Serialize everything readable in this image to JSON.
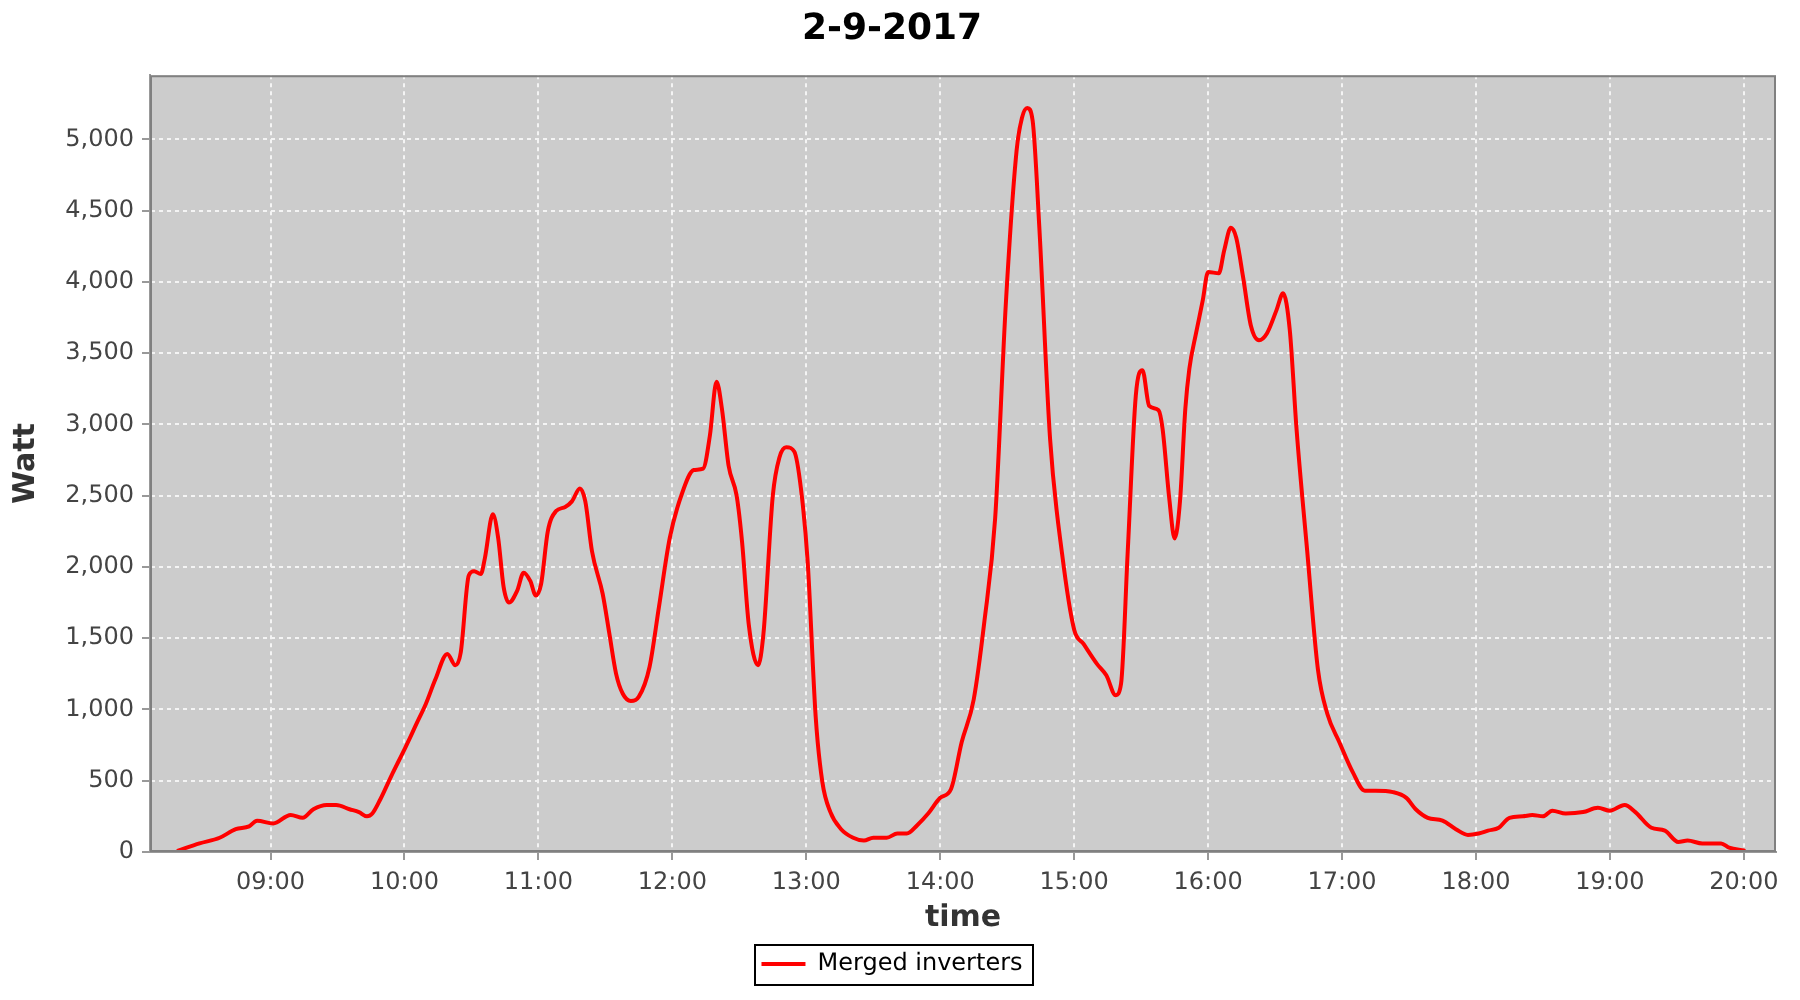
{
  "chart_data": {
    "type": "line",
    "title": "2-9-2017",
    "xlabel": "time",
    "ylabel": "Watt",
    "x": [
      8.31,
      8.47,
      8.62,
      8.74,
      8.84,
      8.9,
      9.02,
      9.15,
      9.24,
      9.32,
      9.42,
      9.49,
      9.59,
      9.66,
      9.72,
      9.76,
      9.82,
      9.91,
      10.0,
      10.09,
      10.16,
      10.23,
      10.32,
      10.38,
      10.42,
      10.48,
      10.52,
      10.57,
      10.6,
      10.66,
      10.7,
      10.74,
      10.78,
      10.84,
      10.89,
      10.94,
      10.98,
      11.02,
      11.07,
      11.13,
      11.2,
      11.25,
      11.31,
      11.35,
      11.4,
      11.48,
      11.53,
      11.58,
      11.63,
      11.69,
      11.75,
      11.83,
      11.9,
      11.98,
      12.07,
      12.16,
      12.23,
      12.28,
      12.33,
      12.37,
      12.42,
      12.48,
      12.52,
      12.57,
      12.64,
      12.68,
      12.75,
      12.8,
      12.85,
      12.91,
      12.96,
      13.01,
      13.07,
      13.12,
      13.18,
      13.26,
      13.35,
      13.43,
      13.5,
      13.6,
      13.68,
      13.75,
      13.83,
      13.91,
      14.0,
      14.08,
      14.16,
      14.25,
      14.33,
      14.41,
      14.49,
      14.57,
      14.61,
      14.65,
      14.69,
      14.74,
      14.82,
      14.91,
      15.0,
      15.07,
      15.17,
      15.24,
      15.31,
      15.35,
      15.4,
      15.46,
      15.51,
      15.56,
      15.63,
      15.66,
      15.71,
      15.75,
      15.79,
      15.83,
      15.86,
      15.91,
      15.96,
      16.0,
      16.08,
      16.12,
      16.17,
      16.21,
      16.26,
      16.32,
      16.38,
      16.44,
      16.51,
      16.56,
      16.61,
      16.66,
      16.74,
      16.82,
      16.89,
      16.98,
      17.08,
      17.17,
      17.25,
      17.38,
      17.48,
      17.55,
      17.64,
      17.75,
      17.85,
      17.94,
      18.02,
      18.09,
      18.17,
      18.25,
      18.35,
      18.42,
      18.5,
      18.57,
      18.67,
      18.8,
      18.91,
      19.0,
      19.11,
      19.19,
      19.31,
      19.41,
      19.51,
      19.58,
      19.69,
      19.83,
      19.89,
      20.0
    ],
    "series": [
      {
        "name": "Merged inverters",
        "color": "#ff0000",
        "values": [
          10,
          60,
          100,
          160,
          180,
          220,
          200,
          260,
          240,
          300,
          330,
          330,
          300,
          280,
          250,
          270,
          370,
          550,
          720,
          900,
          1040,
          1210,
          1390,
          1310,
          1400,
          1940,
          1970,
          1950,
          2060,
          2370,
          2200,
          1860,
          1750,
          1830,
          1960,
          1900,
          1800,
          1880,
          2250,
          2390,
          2420,
          2460,
          2550,
          2460,
          2110,
          1810,
          1530,
          1250,
          1110,
          1060,
          1090,
          1300,
          1720,
          2200,
          2510,
          2680,
          2690,
          2920,
          3300,
          3110,
          2710,
          2500,
          2180,
          1600,
          1310,
          1530,
          2500,
          2770,
          2840,
          2810,
          2550,
          2040,
          950,
          490,
          280,
          160,
          100,
          80,
          100,
          100,
          130,
          130,
          190,
          270,
          380,
          440,
          770,
          1070,
          1620,
          2340,
          3850,
          4920,
          5150,
          5220,
          5130,
          4380,
          2900,
          2090,
          1560,
          1460,
          1320,
          1240,
          1100,
          1180,
          2110,
          3200,
          3380,
          3130,
          3100,
          2970,
          2480,
          2200,
          2460,
          3110,
          3390,
          3640,
          3870,
          4070,
          4060,
          4220,
          4380,
          4310,
          4040,
          3690,
          3590,
          3640,
          3800,
          3920,
          3660,
          2970,
          2110,
          1280,
          970,
          770,
          560,
          430,
          430,
          420,
          380,
          300,
          240,
          220,
          160,
          120,
          130,
          150,
          170,
          240,
          250,
          260,
          250,
          290,
          270,
          280,
          310,
          290,
          330,
          280,
          170,
          150,
          70,
          80,
          60,
          60,
          30,
          10
        ]
      }
    ],
    "xlim": [
      8.1,
      20.24
    ],
    "xticks": [
      {
        "value": 9,
        "label": "09:00"
      },
      {
        "value": 10,
        "label": "10:00"
      },
      {
        "value": 11,
        "label": "11:00"
      },
      {
        "value": 12,
        "label": "12:00"
      },
      {
        "value": 13,
        "label": "13:00"
      },
      {
        "value": 14,
        "label": "14:00"
      },
      {
        "value": 15,
        "label": "15:00"
      },
      {
        "value": 16,
        "label": "16:00"
      },
      {
        "value": 17,
        "label": "17:00"
      },
      {
        "value": 18,
        "label": "18:00"
      },
      {
        "value": 19,
        "label": "19:00"
      },
      {
        "value": 20,
        "label": "20:00"
      }
    ],
    "ylim": [
      0,
      5450
    ],
    "yticks": [
      0,
      500,
      {
        "value": 1000,
        "label": "1,000"
      },
      {
        "value": 1500,
        "label": "1,500"
      },
      {
        "value": 2000,
        "label": "2,000"
      },
      {
        "value": 2500,
        "label": "2,500"
      },
      {
        "value": 3000,
        "label": "3,000"
      },
      {
        "value": 3500,
        "label": "3,500"
      },
      {
        "value": 4000,
        "label": "4,000"
      },
      {
        "value": 4500,
        "label": "4,500"
      },
      {
        "value": 5000,
        "label": "5,000"
      }
    ],
    "grid": true,
    "legend": "bottom",
    "line_style": "solid"
  }
}
